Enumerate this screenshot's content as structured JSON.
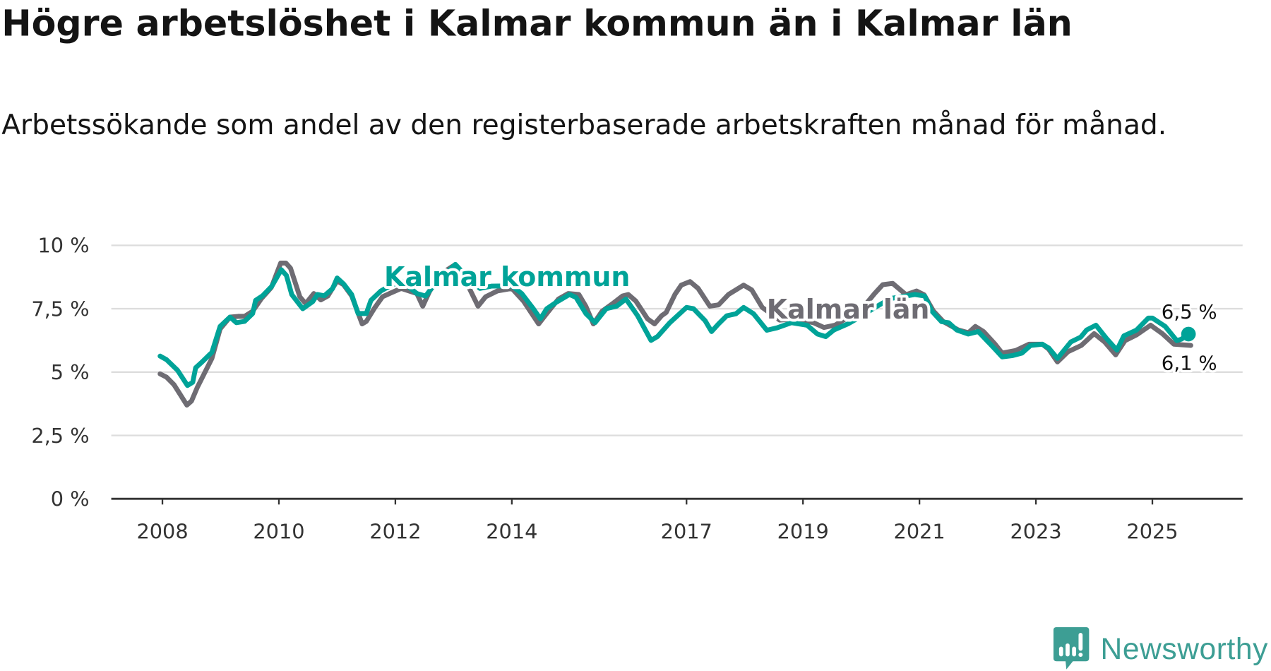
{
  "title": "Högre arbetslöshet i Kalmar kommun än i Kalmar län",
  "subtitle": "Arbetssökande som andel av den registerbaserade arbetskraften månad för månad.",
  "logo_text": "Newsworthy",
  "colors": {
    "kommun": "#00a398",
    "lan": "#6e6c73",
    "grid": "#dddddd",
    "axis": "#333333",
    "logo": "#3d9e94"
  },
  "chart_data": {
    "type": "line",
    "title": "Högre arbetslöshet i Kalmar kommun än i Kalmar län",
    "xlabel": "",
    "ylabel": "",
    "ylim": [
      0,
      10
    ],
    "xlim": [
      2007.1,
      2026.5
    ],
    "grid": true,
    "y_ticks": [
      {
        "value": 0,
        "label": "0 %"
      },
      {
        "value": 2.5,
        "label": "2,5 %"
      },
      {
        "value": 5,
        "label": "5 %"
      },
      {
        "value": 7.5,
        "label": "7,5 %"
      },
      {
        "value": 10,
        "label": "10 %"
      }
    ],
    "x_ticks": [
      {
        "value": 2008,
        "label": "2008"
      },
      {
        "value": 2010,
        "label": "2010"
      },
      {
        "value": 2012,
        "label": "2012"
      },
      {
        "value": 2014,
        "label": "2014"
      },
      {
        "value": 2017,
        "label": "2017"
      },
      {
        "value": 2019,
        "label": "2019"
      },
      {
        "value": 2021,
        "label": "2021"
      },
      {
        "value": 2023,
        "label": "2023"
      },
      {
        "value": 2025,
        "label": "2025"
      }
    ],
    "series": [
      {
        "name": "Kalmar län",
        "key": "lan",
        "label": "Kalmar län",
        "end_label": "6,1 %",
        "points": [
          [
            2007.96,
            4.93
          ],
          [
            2008.07,
            4.8
          ],
          [
            2008.2,
            4.5
          ],
          [
            2008.42,
            3.7
          ],
          [
            2008.5,
            3.86
          ],
          [
            2008.6,
            4.4
          ],
          [
            2008.85,
            5.54
          ],
          [
            2008.99,
            6.7
          ],
          [
            2009.16,
            7.17
          ],
          [
            2009.3,
            7.2
          ],
          [
            2009.41,
            7.2
          ],
          [
            2009.55,
            7.4
          ],
          [
            2009.7,
            7.9
          ],
          [
            2009.87,
            8.34
          ],
          [
            2010.03,
            9.3
          ],
          [
            2010.12,
            9.3
          ],
          [
            2010.2,
            9.1
          ],
          [
            2010.36,
            7.97
          ],
          [
            2010.46,
            7.7
          ],
          [
            2010.6,
            8.1
          ],
          [
            2010.72,
            7.85
          ],
          [
            2010.84,
            8.0
          ],
          [
            2011.0,
            8.6
          ],
          [
            2011.11,
            8.45
          ],
          [
            2011.25,
            8.01
          ],
          [
            2011.43,
            6.9
          ],
          [
            2011.5,
            7.0
          ],
          [
            2011.65,
            7.55
          ],
          [
            2011.78,
            7.97
          ],
          [
            2011.9,
            8.1
          ],
          [
            2012.1,
            8.3
          ],
          [
            2012.37,
            8.1
          ],
          [
            2012.47,
            7.6
          ],
          [
            2012.59,
            8.2
          ],
          [
            2012.8,
            8.9
          ],
          [
            2013.0,
            9.2
          ],
          [
            2013.25,
            8.4
          ],
          [
            2013.42,
            7.6
          ],
          [
            2013.55,
            7.97
          ],
          [
            2013.75,
            8.2
          ],
          [
            2014.0,
            8.3
          ],
          [
            2014.2,
            7.8
          ],
          [
            2014.46,
            6.9
          ],
          [
            2014.6,
            7.31
          ],
          [
            2014.8,
            7.88
          ],
          [
            2014.97,
            8.1
          ],
          [
            2015.15,
            8.06
          ],
          [
            2015.27,
            7.6
          ],
          [
            2015.4,
            6.9
          ],
          [
            2015.55,
            7.4
          ],
          [
            2015.73,
            7.7
          ],
          [
            2015.9,
            8.0
          ],
          [
            2016.0,
            8.06
          ],
          [
            2016.13,
            7.8
          ],
          [
            2016.33,
            7.1
          ],
          [
            2016.45,
            6.9
          ],
          [
            2016.57,
            7.22
          ],
          [
            2016.65,
            7.35
          ],
          [
            2016.8,
            8.06
          ],
          [
            2016.91,
            8.43
          ],
          [
            2017.06,
            8.57
          ],
          [
            2017.2,
            8.3
          ],
          [
            2017.4,
            7.6
          ],
          [
            2017.55,
            7.65
          ],
          [
            2017.72,
            8.06
          ],
          [
            2017.98,
            8.43
          ],
          [
            2018.12,
            8.24
          ],
          [
            2018.3,
            7.55
          ],
          [
            2018.6,
            7.05
          ],
          [
            2018.9,
            7.1
          ],
          [
            2019.19,
            6.94
          ],
          [
            2019.36,
            6.76
          ],
          [
            2019.55,
            6.85
          ],
          [
            2019.8,
            7.2
          ],
          [
            2020.05,
            7.6
          ],
          [
            2020.23,
            8.1
          ],
          [
            2020.37,
            8.45
          ],
          [
            2020.54,
            8.5
          ],
          [
            2020.77,
            8.05
          ],
          [
            2020.95,
            8.2
          ],
          [
            2021.08,
            8.05
          ],
          [
            2021.24,
            7.41
          ],
          [
            2021.41,
            6.99
          ],
          [
            2021.67,
            6.66
          ],
          [
            2021.84,
            6.55
          ],
          [
            2021.96,
            6.8
          ],
          [
            2022.1,
            6.6
          ],
          [
            2022.3,
            6.1
          ],
          [
            2022.42,
            5.75
          ],
          [
            2022.65,
            5.85
          ],
          [
            2022.88,
            6.1
          ],
          [
            2023.11,
            6.1
          ],
          [
            2023.22,
            5.9
          ],
          [
            2023.37,
            5.4
          ],
          [
            2023.55,
            5.8
          ],
          [
            2023.78,
            6.05
          ],
          [
            2024.0,
            6.52
          ],
          [
            2024.18,
            6.19
          ],
          [
            2024.37,
            5.68
          ],
          [
            2024.53,
            6.24
          ],
          [
            2024.73,
            6.47
          ],
          [
            2024.97,
            6.85
          ],
          [
            2025.17,
            6.52
          ],
          [
            2025.37,
            6.1
          ],
          [
            2025.66,
            6.05
          ]
        ]
      },
      {
        "name": "Kalmar kommun",
        "key": "kommun",
        "label": "Kalmar kommun",
        "end_label": "6,5 %",
        "points": [
          [
            2007.96,
            5.63
          ],
          [
            2008.07,
            5.49
          ],
          [
            2008.26,
            5.07
          ],
          [
            2008.43,
            4.47
          ],
          [
            2008.52,
            4.6
          ],
          [
            2008.57,
            5.17
          ],
          [
            2008.68,
            5.4
          ],
          [
            2008.85,
            5.78
          ],
          [
            2008.99,
            6.8
          ],
          [
            2009.16,
            7.17
          ],
          [
            2009.27,
            6.95
          ],
          [
            2009.41,
            7.0
          ],
          [
            2009.55,
            7.31
          ],
          [
            2009.6,
            7.83
          ],
          [
            2009.72,
            8.01
          ],
          [
            2009.88,
            8.39
          ],
          [
            2010.04,
            9.04
          ],
          [
            2010.13,
            8.81
          ],
          [
            2010.22,
            8.06
          ],
          [
            2010.41,
            7.5
          ],
          [
            2010.58,
            7.78
          ],
          [
            2010.66,
            8.06
          ],
          [
            2010.78,
            8.01
          ],
          [
            2010.92,
            8.29
          ],
          [
            2011.0,
            8.71
          ],
          [
            2011.11,
            8.48
          ],
          [
            2011.25,
            8.06
          ],
          [
            2011.36,
            7.31
          ],
          [
            2011.5,
            7.31
          ],
          [
            2011.58,
            7.83
          ],
          [
            2011.75,
            8.2
          ],
          [
            2011.86,
            8.34
          ],
          [
            2012.1,
            8.6
          ],
          [
            2012.37,
            8.1
          ],
          [
            2012.52,
            8.0
          ],
          [
            2012.65,
            8.4
          ],
          [
            2013.03,
            9.25
          ],
          [
            2013.25,
            8.7
          ],
          [
            2013.45,
            8.3
          ],
          [
            2013.65,
            8.39
          ],
          [
            2014.0,
            8.4
          ],
          [
            2014.17,
            8.1
          ],
          [
            2014.37,
            7.5
          ],
          [
            2014.49,
            7.1
          ],
          [
            2014.6,
            7.5
          ],
          [
            2014.76,
            7.75
          ],
          [
            2014.99,
            8.06
          ],
          [
            2015.1,
            7.95
          ],
          [
            2015.27,
            7.31
          ],
          [
            2015.43,
            6.95
          ],
          [
            2015.62,
            7.5
          ],
          [
            2015.8,
            7.6
          ],
          [
            2015.96,
            7.88
          ],
          [
            2016.16,
            7.22
          ],
          [
            2016.39,
            6.25
          ],
          [
            2016.5,
            6.4
          ],
          [
            2016.71,
            6.94
          ],
          [
            2017.0,
            7.55
          ],
          [
            2017.12,
            7.5
          ],
          [
            2017.32,
            7.03
          ],
          [
            2017.43,
            6.6
          ],
          [
            2017.55,
            6.9
          ],
          [
            2017.69,
            7.22
          ],
          [
            2017.85,
            7.3
          ],
          [
            2017.98,
            7.55
          ],
          [
            2018.15,
            7.3
          ],
          [
            2018.38,
            6.65
          ],
          [
            2018.56,
            6.75
          ],
          [
            2018.8,
            6.95
          ],
          [
            2019.07,
            6.85
          ],
          [
            2019.25,
            6.5
          ],
          [
            2019.39,
            6.4
          ],
          [
            2019.53,
            6.66
          ],
          [
            2019.77,
            6.9
          ],
          [
            2020.0,
            7.2
          ],
          [
            2020.2,
            7.5
          ],
          [
            2020.5,
            7.9
          ],
          [
            2020.92,
            8.06
          ],
          [
            2021.09,
            8.0
          ],
          [
            2021.21,
            7.41
          ],
          [
            2021.38,
            6.99
          ],
          [
            2021.5,
            6.95
          ],
          [
            2021.64,
            6.66
          ],
          [
            2021.84,
            6.5
          ],
          [
            2022.01,
            6.6
          ],
          [
            2022.3,
            5.9
          ],
          [
            2022.42,
            5.6
          ],
          [
            2022.6,
            5.65
          ],
          [
            2022.76,
            5.75
          ],
          [
            2022.91,
            6.05
          ],
          [
            2023.11,
            6.1
          ],
          [
            2023.22,
            5.95
          ],
          [
            2023.37,
            5.54
          ],
          [
            2023.6,
            6.19
          ],
          [
            2023.77,
            6.38
          ],
          [
            2023.87,
            6.66
          ],
          [
            2024.03,
            6.85
          ],
          [
            2024.21,
            6.33
          ],
          [
            2024.39,
            5.87
          ],
          [
            2024.51,
            6.43
          ],
          [
            2024.73,
            6.66
          ],
          [
            2024.93,
            7.13
          ],
          [
            2025.0,
            7.13
          ],
          [
            2025.22,
            6.8
          ],
          [
            2025.42,
            6.24
          ],
          [
            2025.5,
            6.3
          ],
          [
            2025.62,
            6.5
          ]
        ]
      }
    ]
  }
}
